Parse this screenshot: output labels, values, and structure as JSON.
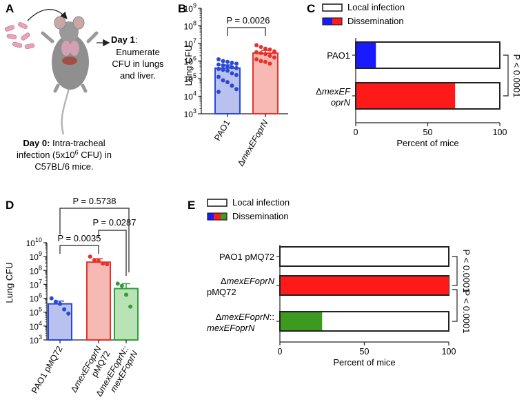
{
  "panels": {
    "a": "A",
    "b": "B",
    "c": "C",
    "d": "D",
    "e": "E"
  },
  "panel_a": {
    "day1_bold": "Day 1",
    "day1_rest": ":",
    "day1_lines": [
      "Enumerate",
      "CFU in lungs",
      "and liver."
    ],
    "day0_bold": "Day 0:",
    "day0_rest": "Intra-tracheal",
    "day0_line2": "infection (5x10",
    "day0_sup": "6",
    "day0_line2_end": " CFU) in",
    "day0_line3": "C57BL/6 mice."
  },
  "colors": {
    "pao1": "#2948d4",
    "pao1_fill": "#b9c2ee",
    "mutant": "#e4332b",
    "mutant_fill": "#f6b9b4",
    "comp": "#2f9e3a",
    "comp_fill": "#b9e2b5",
    "dissem_blue": "#1a1aff",
    "dissem_red": "#ff1a1a",
    "dissem_green": "#3c9a1e"
  },
  "chart_data": [
    {
      "id": "B",
      "type": "bar",
      "scale": "log10",
      "ylabel": "Lung CFU",
      "ylim": [
        1000,
        1000000000
      ],
      "yticks": [
        {
          "base": "10",
          "exp": "3"
        },
        {
          "base": "10",
          "exp": "4"
        },
        {
          "base": "10",
          "exp": "5"
        },
        {
          "base": "10",
          "exp": "6"
        },
        {
          "base": "10",
          "exp": "7"
        },
        {
          "base": "10",
          "exp": "8"
        },
        {
          "base": "10",
          "exp": "9"
        }
      ],
      "categories": [
        {
          "prefix": "",
          "label": "PAO1"
        },
        {
          "prefix": "Δ",
          "label": "mexEFoprN"
        }
      ],
      "means": [
        5.6,
        6.45
      ],
      "errors": [
        0.18,
        0.15
      ],
      "points": [
        [
          6.1,
          6.0,
          5.95,
          5.9,
          5.85,
          5.8,
          5.75,
          5.7,
          5.65,
          5.6,
          5.55,
          5.5,
          5.45,
          5.3,
          5.2,
          5.1,
          4.9,
          4.8,
          4.6,
          4.4,
          4.25
        ],
        [
          6.9,
          6.8,
          6.7,
          6.65,
          6.55,
          6.5,
          6.45,
          6.4,
          6.3,
          6.2,
          6.1,
          6.0,
          5.95,
          5.85
        ]
      ],
      "annotations": [
        "P = 0.0026"
      ]
    },
    {
      "id": "C",
      "type": "stacked-bar-horizontal",
      "xlabel": "Percent of mice",
      "xlim": [
        0,
        100
      ],
      "xticks": [
        "0",
        "50",
        "100"
      ],
      "legend": [
        "Local infection",
        "Dissemination"
      ],
      "categories": [
        {
          "line1_prefix": "",
          "line1": "PAO1",
          "line2": ""
        },
        {
          "line1_prefix": "Δ",
          "line1": "mexEF",
          "line2": "oprN"
        }
      ],
      "dissemination_percent": [
        14,
        69
      ],
      "significance": "P < 0.0001"
    },
    {
      "id": "D",
      "type": "bar",
      "scale": "log10",
      "ylabel": "Lung CFU",
      "ylim": [
        1000,
        10000000000
      ],
      "yticks": [
        {
          "base": "10",
          "exp": "3"
        },
        {
          "base": "10",
          "exp": "4"
        },
        {
          "base": "10",
          "exp": "5"
        },
        {
          "base": "10",
          "exp": "6"
        },
        {
          "base": "10",
          "exp": "7"
        },
        {
          "base": "10",
          "exp": "8"
        },
        {
          "base": "10",
          "exp": "9"
        },
        {
          "base": "10",
          "exp": "10"
        }
      ],
      "categories": [
        {
          "prefix": "",
          "line1": "PAO1 pMQ72",
          "line2": ""
        },
        {
          "prefix": "Δ",
          "line1": "mexEFoprN",
          "line2": "pMQ72"
        },
        {
          "prefix": "Δ",
          "line1": "mexEFoprN::",
          "line2": "mexEFoprN"
        }
      ],
      "means": [
        5.6,
        8.6,
        6.7
      ],
      "errors": [
        0.2,
        0.25,
        0.35
      ],
      "points": [
        [
          6.0,
          5.75,
          5.6,
          5.2,
          4.9
        ],
        [
          9.0,
          8.75,
          8.7,
          8.5,
          8.45
        ],
        [
          7.05,
          6.9,
          6.25,
          5.4
        ]
      ],
      "annotations": [
        "P = 0.5738",
        "P = 0.0287",
        "P = 0.0035"
      ]
    },
    {
      "id": "E",
      "type": "stacked-bar-horizontal",
      "xlabel": "Percent of mice",
      "xlim": [
        0,
        100
      ],
      "xticks": [
        "0",
        "50",
        "100"
      ],
      "legend": [
        "Local infection",
        "Dissemination"
      ],
      "categories": [
        {
          "prefix": "",
          "line1": "PAO1 pMQ72",
          "line2": ""
        },
        {
          "prefix": "Δ",
          "line1": "mexEFoprN",
          "line2": "pMQ72"
        },
        {
          "prefix": "Δ",
          "line1": "mexEFoprN",
          "line1_end": "::",
          "line2": "mexEFoprN"
        }
      ],
      "dissemination_percent": [
        0,
        100,
        25
      ],
      "significance": [
        "P < 0.0001",
        "P < 0.0001"
      ]
    }
  ]
}
